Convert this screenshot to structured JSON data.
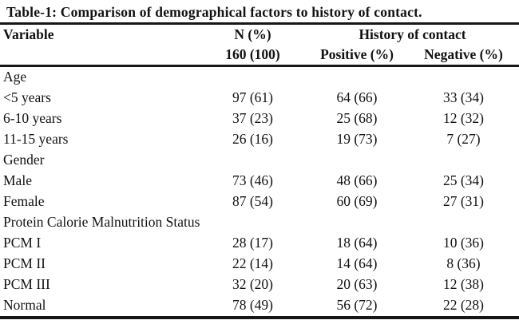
{
  "title": "Table-1: Comparison of demographical factors to history of contact.",
  "header": {
    "variable": "Variable",
    "n_label": "N (%)",
    "n_total": "160 (100)",
    "history": "History of contact",
    "positive": "Positive (%)",
    "negative": "Negative (%)"
  },
  "sections": [
    {
      "name": "Age",
      "rows": [
        {
          "label": "<5 years",
          "n": "97 (61)",
          "positive": "64 (66)",
          "negative": "33 (34)"
        },
        {
          "label": "6-10 years",
          "n": "37 (23)",
          "positive": "25 (68)",
          "negative": "12 (32)"
        },
        {
          "label": "11-15 years",
          "n": "26 (16)",
          "positive": "19 (73)",
          "negative": "7 (27)"
        }
      ]
    },
    {
      "name": "Gender",
      "rows": [
        {
          "label": "Male",
          "n": "73 (46)",
          "positive": "48 (66)",
          "negative": "25 (34)"
        },
        {
          "label": "Female",
          "n": "87 (54)",
          "positive": "60 (69)",
          "negative": "27 (31)"
        }
      ]
    },
    {
      "name": "Protein Calorie Malnutrition Status",
      "rows": [
        {
          "label": "PCM I",
          "n": "28 (17)",
          "positive": "18 (64)",
          "negative": "10 (36)"
        },
        {
          "label": "PCM II",
          "n": "22 (14)",
          "positive": "14 (64)",
          "negative": "8 (36)"
        },
        {
          "label": "PCM III",
          "n": "32 (20)",
          "positive": "20 (63)",
          "negative": "12 (38)"
        },
        {
          "label": "Normal",
          "n": "78 (49)",
          "positive": "56 (72)",
          "negative": "22 (28)"
        }
      ]
    }
  ],
  "colors": {
    "background": "#ffffff",
    "text": "#121212",
    "rule": "#161616"
  }
}
